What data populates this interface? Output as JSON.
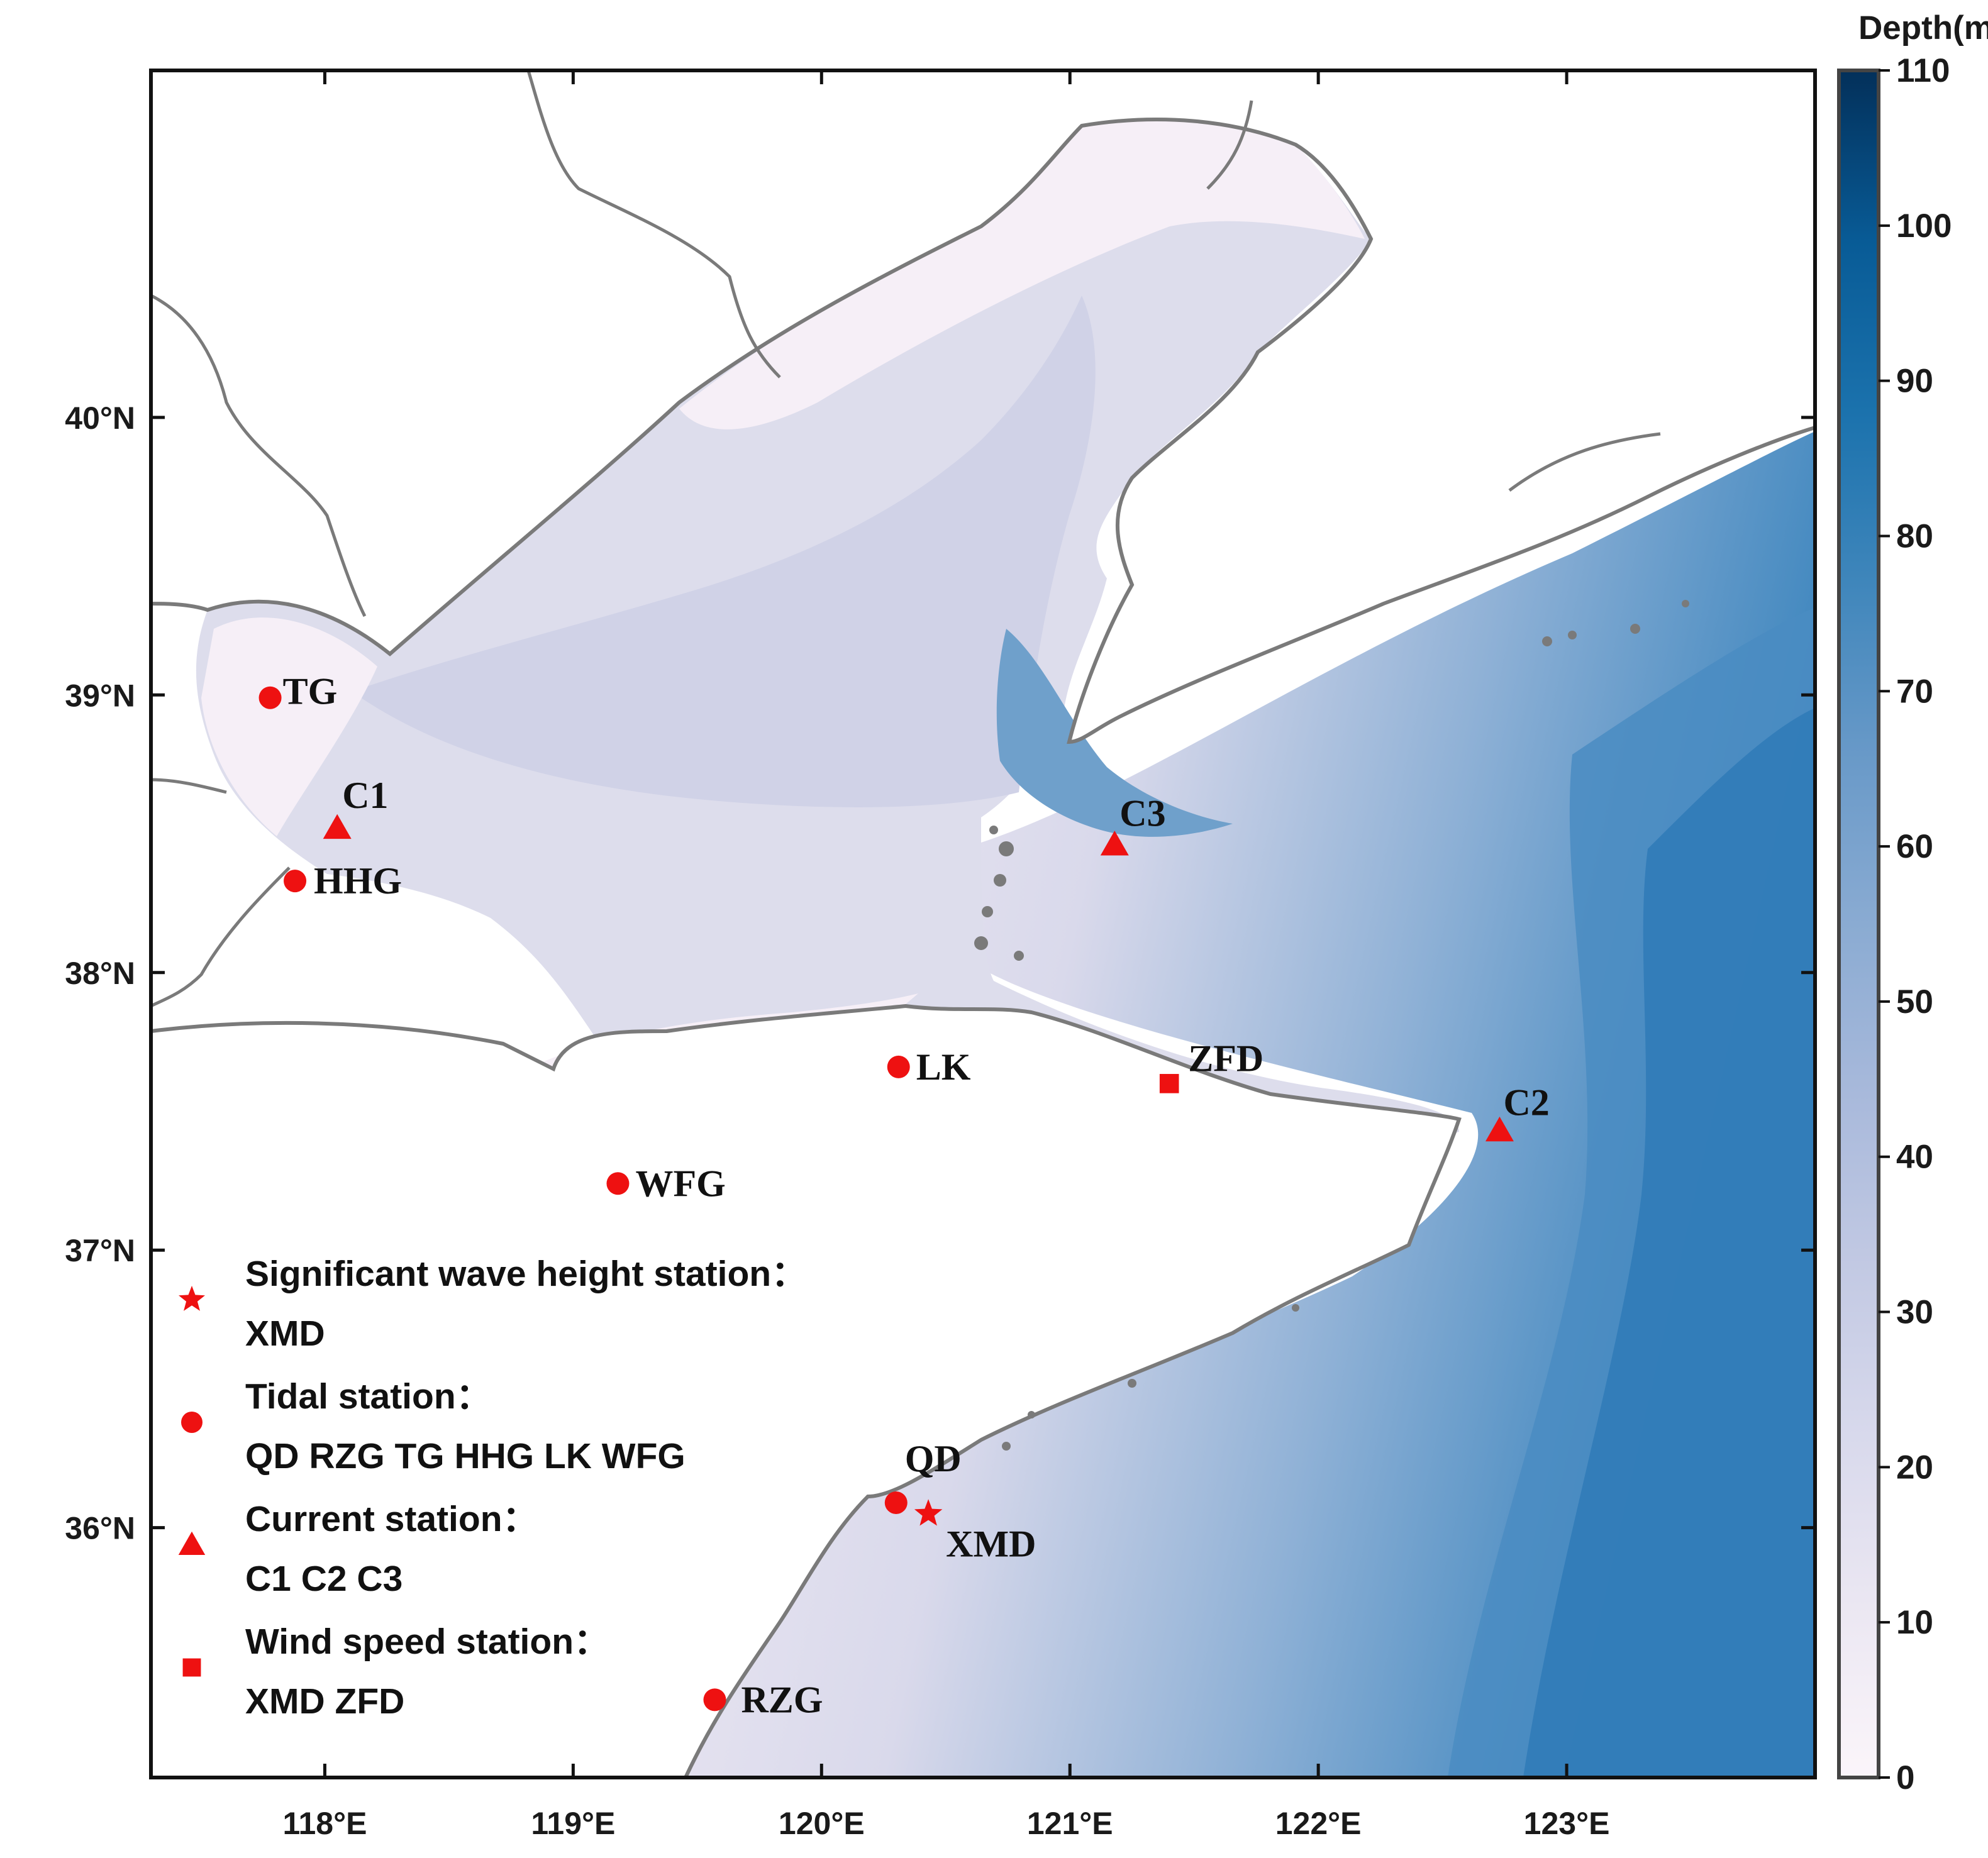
{
  "map": {
    "lon_range": [
      117.3,
      124.0
    ],
    "lat_range": [
      35.1,
      41.25
    ],
    "x_ticks": [
      {
        "value": 118,
        "label": "118°E"
      },
      {
        "value": 119,
        "label": "119°E"
      },
      {
        "value": 120,
        "label": "120°E"
      },
      {
        "value": 121,
        "label": "121°E"
      },
      {
        "value": 122,
        "label": "122°E"
      },
      {
        "value": 123,
        "label": "123°E"
      }
    ],
    "y_ticks": [
      {
        "value": 36,
        "label": "36°N"
      },
      {
        "value": 37,
        "label": "37°N"
      },
      {
        "value": 38,
        "label": "38°N"
      },
      {
        "value": 39,
        "label": "39°N"
      },
      {
        "value": 40,
        "label": "40°N"
      }
    ],
    "marker_color": "#ee1111",
    "land_color": "#ffffff",
    "coast_color": "#7a7a7a"
  },
  "stations": [
    {
      "id": "TG",
      "label": "TG",
      "symbol": "circle",
      "lon": 117.78,
      "lat": 38.99
    },
    {
      "id": "C1",
      "label": "C1",
      "symbol": "triangle",
      "lon": 118.05,
      "lat": 38.52
    },
    {
      "id": "HHG",
      "label": "HHG",
      "symbol": "circle",
      "lon": 117.88,
      "lat": 38.33
    },
    {
      "id": "C3",
      "label": "C3",
      "symbol": "triangle",
      "lon": 121.18,
      "lat": 38.46
    },
    {
      "id": "LK",
      "label": "LK",
      "symbol": "circle",
      "lon": 120.31,
      "lat": 37.66
    },
    {
      "id": "ZFD",
      "label": "ZFD",
      "symbol": "square",
      "lon": 121.4,
      "lat": 37.6
    },
    {
      "id": "C2",
      "label": "C2",
      "symbol": "triangle",
      "lon": 122.73,
      "lat": 37.43
    },
    {
      "id": "WFG",
      "label": "WFG",
      "symbol": "circle",
      "lon": 119.18,
      "lat": 37.24
    },
    {
      "id": "QD",
      "label": "QD",
      "symbol": "circle",
      "lon": 120.3,
      "lat": 36.09
    },
    {
      "id": "XMD",
      "label": "XMD",
      "symbol": "star",
      "lon": 120.43,
      "lat": 36.05
    },
    {
      "id": "RZG",
      "label": "RZG",
      "symbol": "circle",
      "lon": 119.57,
      "lat": 35.38
    }
  ],
  "legend": [
    {
      "symbol": "star",
      "title": "Significant wave height station：",
      "list": "XMD"
    },
    {
      "symbol": "circle",
      "title": "Tidal station：",
      "list": "QD RZG TG HHG LK WFG"
    },
    {
      "symbol": "triangle",
      "title": "Current station：",
      "list": "C1 C2 C3"
    },
    {
      "symbol": "square",
      "title": "Wind speed station：",
      "list": "XMD ZFD"
    }
  ],
  "colorbar": {
    "title": "Depth(m)",
    "min": 0,
    "max": 110,
    "ticks": [
      0,
      10,
      20,
      30,
      40,
      50,
      60,
      70,
      80,
      90,
      100,
      110
    ],
    "tick_labels": [
      "0",
      "10",
      "20",
      "30",
      "40",
      "50",
      "60",
      "70",
      "80",
      "90",
      "100",
      "110"
    ],
    "colors": [
      "#fbf5fa",
      "#e4e2f0",
      "#cdd0e6",
      "#b3bfdc",
      "#97b0d4",
      "#759fca",
      "#4f8cbf",
      "#2c79b4",
      "#0e64a3",
      "#05518a",
      "#053e6c",
      "#03305a"
    ]
  }
}
